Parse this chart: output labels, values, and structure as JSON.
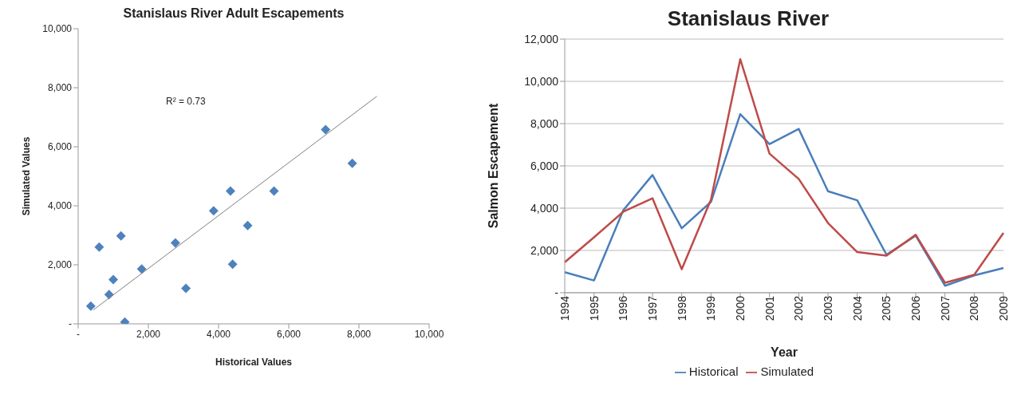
{
  "chart_data": [
    {
      "type": "scatter",
      "title": "Stanislaus River Adult Escapements",
      "xlabel": "Historical Values",
      "ylabel": "Simulated Values",
      "annotations": [
        "R² = 0.73"
      ],
      "xlim": [
        0,
        10000
      ],
      "ylim": [
        0,
        10000
      ],
      "xticks": [
        {
          "value": 0,
          "label": "-"
        },
        {
          "value": 2000,
          "label": "2,000"
        },
        {
          "value": 4000,
          "label": "4,000"
        },
        {
          "value": 6000,
          "label": "6,000"
        },
        {
          "value": 8000,
          "label": "8,000"
        },
        {
          "value": 10000,
          "label": "10,000"
        }
      ],
      "yticks": [
        {
          "value": 0,
          "label": "-"
        },
        {
          "value": 2000,
          "label": "2,000"
        },
        {
          "value": 4000,
          "label": "4,000"
        },
        {
          "value": 6000,
          "label": "6,000"
        },
        {
          "value": 8000,
          "label": "8,000"
        },
        {
          "value": 10000,
          "label": "10,000"
        }
      ],
      "grid": false,
      "legend": false,
      "series": [
        {
          "color": "#4f81bd",
          "marker": "diamond",
          "x": [
            360,
            600,
            880,
            1000,
            1220,
            1330,
            1810,
            2770,
            3070,
            3860,
            4340,
            4400,
            4830,
            5580,
            7050,
            7810
          ],
          "values": [
            600,
            2600,
            990,
            1500,
            2980,
            60,
            1860,
            2740,
            1200,
            3830,
            4500,
            2020,
            3330,
            4500,
            6580,
            5440
          ]
        },
        {
          "type": "line",
          "color": "#7f7f7f",
          "marker": "none",
          "x": [
            430,
            8510
          ],
          "values": [
            470,
            7710
          ]
        }
      ]
    },
    {
      "type": "line",
      "title": "Stanislaus River",
      "xlabel": "Year",
      "ylabel": "Salmon Escapement",
      "categories": [
        "1994",
        "1995",
        "1996",
        "1997",
        "1998",
        "1999",
        "2000",
        "2001",
        "2002",
        "2003",
        "2004",
        "2005",
        "2006",
        "2007",
        "2008",
        "2009"
      ],
      "ylim": [
        0,
        12000
      ],
      "yticks": [
        {
          "value": 0,
          "label": "-"
        },
        {
          "value": 2000,
          "label": "2,000"
        },
        {
          "value": 4000,
          "label": "4,000"
        },
        {
          "value": 6000,
          "label": "6,000"
        },
        {
          "value": 8000,
          "label": "8,000"
        },
        {
          "value": 10000,
          "label": "10,000"
        },
        {
          "value": 12000,
          "label": "12,000"
        }
      ],
      "grid": "y",
      "legend": "bottom",
      "marker": "none",
      "line_style": "solid",
      "series": [
        {
          "name": "Historical",
          "color": "#4a7ebb",
          "values": [
            970,
            580,
            3900,
            5570,
            3050,
            4300,
            8450,
            7030,
            7750,
            4800,
            4370,
            1800,
            2700,
            330,
            820,
            1170
          ]
        },
        {
          "name": "Simulated",
          "color": "#be4b48",
          "values": [
            1440,
            2620,
            3830,
            4470,
            1110,
            4410,
            11050,
            6580,
            5380,
            3300,
            1920,
            1750,
            2740,
            470,
            850,
            2830
          ]
        }
      ]
    }
  ]
}
